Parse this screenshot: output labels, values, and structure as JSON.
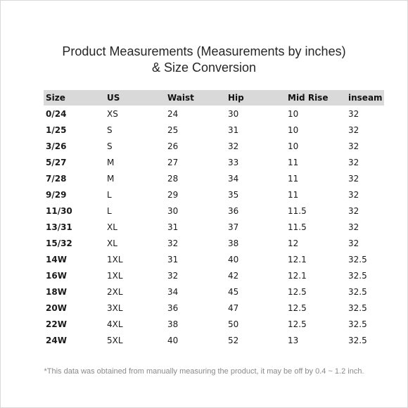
{
  "title": {
    "line1": "Product Measurements (Measurements by inches)",
    "line2": "& Size Conversion"
  },
  "table": {
    "headers": [
      "Size",
      "US",
      "Waist",
      "Hip",
      "Mid Rise",
      "inseam"
    ],
    "rows": [
      [
        "0/24",
        "XS",
        "24",
        "30",
        "10",
        "32"
      ],
      [
        "1/25",
        "S",
        "25",
        "31",
        "10",
        "32"
      ],
      [
        "3/26",
        "S",
        "26",
        "32",
        "10",
        "32"
      ],
      [
        "5/27",
        "M",
        "27",
        "33",
        "11",
        "32"
      ],
      [
        "7/28",
        "M",
        "28",
        "34",
        "11",
        "32"
      ],
      [
        "9/29",
        "L",
        "29",
        "35",
        "11",
        "32"
      ],
      [
        "11/30",
        "L",
        "30",
        "36",
        "11.5",
        "32"
      ],
      [
        "13/31",
        "XL",
        "31",
        "37",
        "11.5",
        "32"
      ],
      [
        "15/32",
        "XL",
        "32",
        "38",
        "12",
        "32"
      ],
      [
        "14W",
        "1XL",
        "31",
        "40",
        "12.1",
        "32.5"
      ],
      [
        "16W",
        "1XL",
        "32",
        "42",
        "12.1",
        "32.5"
      ],
      [
        "18W",
        "2XL",
        "34",
        "45",
        "12.5",
        "32.5"
      ],
      [
        "20W",
        "3XL",
        "36",
        "47",
        "12.5",
        "32.5"
      ],
      [
        "22W",
        "4XL",
        "38",
        "50",
        "12.5",
        "32.5"
      ],
      [
        "24W",
        "5XL",
        "40",
        "52",
        "13",
        "32.5"
      ]
    ]
  },
  "footnote": "*This data was obtained from manually measuring the product, it may be off by 0.4 ~ 1.2 inch.",
  "colors": {
    "header_background": "#d9d9d9",
    "footnote_text": "#8a8a8a"
  }
}
